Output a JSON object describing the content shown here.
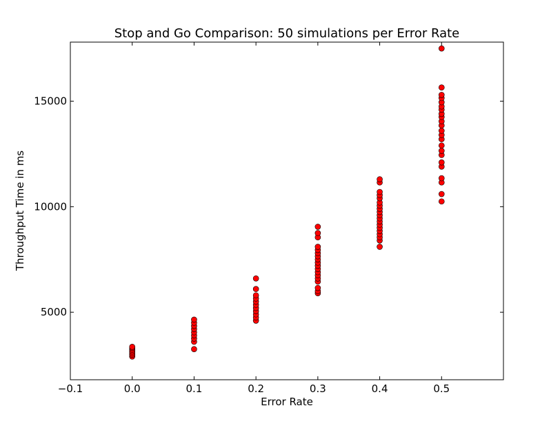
{
  "chart_data": {
    "type": "scatter",
    "title": "Stop and Go Comparison: 50 simulations per Error Rate",
    "xlabel": "Error Rate",
    "ylabel": "Throughput Time in ms",
    "xlim": [
      -0.1,
      0.6
    ],
    "ylim": [
      1800,
      17800
    ],
    "grid": false,
    "x_ticks": [
      -0.1,
      0.0,
      0.1,
      0.2,
      0.3,
      0.4,
      0.5
    ],
    "x_tick_labels": [
      "−0.1",
      "0.0",
      "0.1",
      "0.2",
      "0.3",
      "0.4",
      "0.5"
    ],
    "y_ticks": [
      5000,
      10000,
      15000
    ],
    "y_tick_labels": [
      "5000",
      "10000",
      "15000"
    ],
    "marker": "o",
    "marker_color": "#ff0000",
    "series": [
      {
        "name": "Throughput",
        "points": [
          {
            "x": 0.0,
            "y": 2900
          },
          {
            "x": 0.0,
            "y": 2980
          },
          {
            "x": 0.0,
            "y": 3060
          },
          {
            "x": 0.0,
            "y": 3140
          },
          {
            "x": 0.0,
            "y": 3220
          },
          {
            "x": 0.0,
            "y": 3300
          },
          {
            "x": 0.0,
            "y": 3360
          },
          {
            "x": 0.1,
            "y": 3250
          },
          {
            "x": 0.1,
            "y": 3600
          },
          {
            "x": 0.1,
            "y": 3750
          },
          {
            "x": 0.1,
            "y": 3900
          },
          {
            "x": 0.1,
            "y": 4050
          },
          {
            "x": 0.1,
            "y": 4200
          },
          {
            "x": 0.1,
            "y": 4350
          },
          {
            "x": 0.1,
            "y": 4500
          },
          {
            "x": 0.1,
            "y": 4650
          },
          {
            "x": 0.2,
            "y": 4600
          },
          {
            "x": 0.2,
            "y": 4750
          },
          {
            "x": 0.2,
            "y": 4900
          },
          {
            "x": 0.2,
            "y": 5050
          },
          {
            "x": 0.2,
            "y": 5200
          },
          {
            "x": 0.2,
            "y": 5350
          },
          {
            "x": 0.2,
            "y": 5500
          },
          {
            "x": 0.2,
            "y": 5650
          },
          {
            "x": 0.2,
            "y": 5800
          },
          {
            "x": 0.2,
            "y": 6100
          },
          {
            "x": 0.2,
            "y": 6600
          },
          {
            "x": 0.3,
            "y": 5900
          },
          {
            "x": 0.3,
            "y": 6000
          },
          {
            "x": 0.3,
            "y": 6150
          },
          {
            "x": 0.3,
            "y": 6450
          },
          {
            "x": 0.3,
            "y": 6600
          },
          {
            "x": 0.3,
            "y": 6750
          },
          {
            "x": 0.3,
            "y": 6900
          },
          {
            "x": 0.3,
            "y": 7050
          },
          {
            "x": 0.3,
            "y": 7200
          },
          {
            "x": 0.3,
            "y": 7350
          },
          {
            "x": 0.3,
            "y": 7500
          },
          {
            "x": 0.3,
            "y": 7650
          },
          {
            "x": 0.3,
            "y": 7800
          },
          {
            "x": 0.3,
            "y": 7950
          },
          {
            "x": 0.3,
            "y": 8100
          },
          {
            "x": 0.3,
            "y": 8550
          },
          {
            "x": 0.3,
            "y": 8750
          },
          {
            "x": 0.3,
            "y": 9050
          },
          {
            "x": 0.4,
            "y": 8100
          },
          {
            "x": 0.4,
            "y": 8400
          },
          {
            "x": 0.4,
            "y": 8550
          },
          {
            "x": 0.4,
            "y": 8700
          },
          {
            "x": 0.4,
            "y": 8850
          },
          {
            "x": 0.4,
            "y": 9000
          },
          {
            "x": 0.4,
            "y": 9150
          },
          {
            "x": 0.4,
            "y": 9300
          },
          {
            "x": 0.4,
            "y": 9450
          },
          {
            "x": 0.4,
            "y": 9600
          },
          {
            "x": 0.4,
            "y": 9750
          },
          {
            "x": 0.4,
            "y": 9900
          },
          {
            "x": 0.4,
            "y": 10050
          },
          {
            "x": 0.4,
            "y": 10200
          },
          {
            "x": 0.4,
            "y": 10400
          },
          {
            "x": 0.4,
            "y": 10550
          },
          {
            "x": 0.4,
            "y": 10700
          },
          {
            "x": 0.4,
            "y": 11150
          },
          {
            "x": 0.4,
            "y": 11300
          },
          {
            "x": 0.5,
            "y": 10250
          },
          {
            "x": 0.5,
            "y": 10600
          },
          {
            "x": 0.5,
            "y": 11150
          },
          {
            "x": 0.5,
            "y": 11350
          },
          {
            "x": 0.5,
            "y": 11900
          },
          {
            "x": 0.5,
            "y": 12100
          },
          {
            "x": 0.5,
            "y": 12450
          },
          {
            "x": 0.5,
            "y": 12650
          },
          {
            "x": 0.5,
            "y": 12900
          },
          {
            "x": 0.5,
            "y": 13200
          },
          {
            "x": 0.5,
            "y": 13400
          },
          {
            "x": 0.5,
            "y": 13600
          },
          {
            "x": 0.5,
            "y": 13850
          },
          {
            "x": 0.5,
            "y": 14050
          },
          {
            "x": 0.5,
            "y": 14250
          },
          {
            "x": 0.5,
            "y": 14400
          },
          {
            "x": 0.5,
            "y": 14600
          },
          {
            "x": 0.5,
            "y": 14750
          },
          {
            "x": 0.5,
            "y": 14950
          },
          {
            "x": 0.5,
            "y": 15150
          },
          {
            "x": 0.5,
            "y": 15300
          },
          {
            "x": 0.5,
            "y": 15650
          },
          {
            "x": 0.5,
            "y": 17500
          }
        ]
      }
    ]
  }
}
